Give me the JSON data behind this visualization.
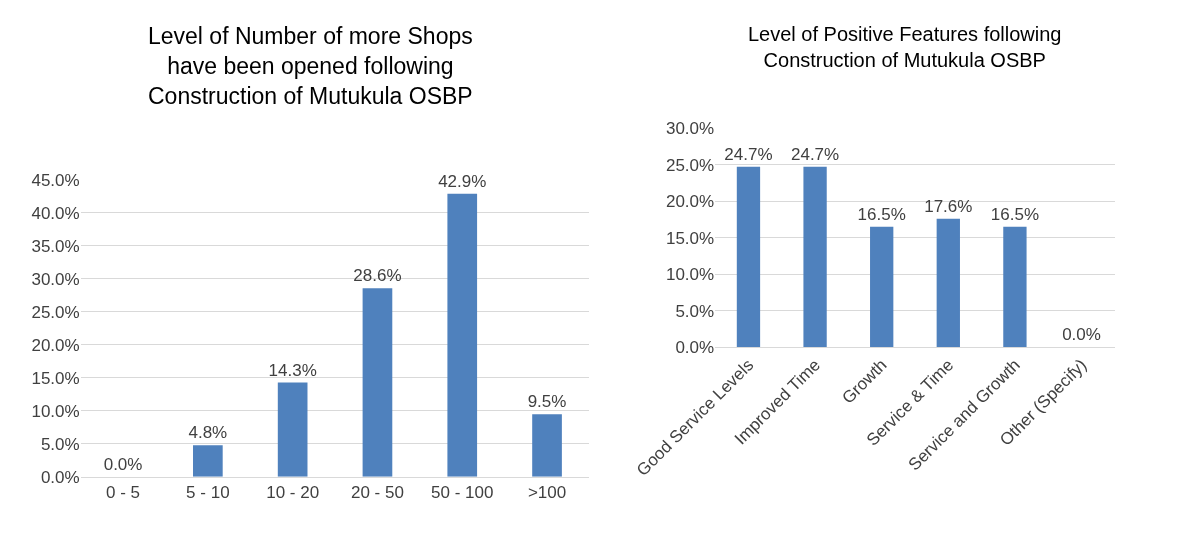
{
  "chart_data": [
    {
      "type": "bar",
      "title": "Level of Number of more Shops have been opened following Construction of Mutukula OSBP",
      "categories": [
        "0 - 5",
        "5 - 10",
        "10 - 20",
        "20 - 50",
        "50 - 100",
        ">100"
      ],
      "series": [
        {
          "color": "#4f81bd",
          "values": [
            0.0,
            4.8,
            14.3,
            28.6,
            42.9,
            9.5
          ],
          "value_labels": [
            "0.0%",
            "4.8%",
            "14.3%",
            "28.6%",
            "42.9%",
            "9.5%"
          ]
        }
      ],
      "ylim": [
        0,
        45
      ],
      "yticks": [
        {
          "value": 0,
          "label": "0.0%"
        },
        {
          "value": 5,
          "label": "5.0%"
        },
        {
          "value": 10,
          "label": "10.0%"
        },
        {
          "value": 15,
          "label": "15.0%"
        },
        {
          "value": 20,
          "label": "20.0%"
        },
        {
          "value": 25,
          "label": "25.0%"
        },
        {
          "value": 30,
          "label": "30.0%"
        },
        {
          "value": 35,
          "label": "35.0%"
        },
        {
          "value": 40,
          "label": "40.0%"
        },
        {
          "value": 45,
          "label": "45.0%"
        }
      ],
      "grid": "y"
    },
    {
      "type": "bar",
      "title": "Level of Positive Features following Construction of Mutukula OSBP",
      "categories": [
        "Good Service Levels",
        "Improved Time",
        "Growth",
        "Service & Time",
        "Service and Growth",
        "Other (Specify)"
      ],
      "series": [
        {
          "color": "#4f81bd",
          "values": [
            24.7,
            24.7,
            16.5,
            17.6,
            16.5,
            0.0
          ],
          "value_labels": [
            "24.7%",
            "24.7%",
            "16.5%",
            "17.6%",
            "16.5%",
            "0.0%"
          ]
        }
      ],
      "ylim": [
        0,
        30
      ],
      "yticks": [
        {
          "value": 0,
          "label": "0.0%"
        },
        {
          "value": 5,
          "label": "5.0%"
        },
        {
          "value": 10,
          "label": "10.0%"
        },
        {
          "value": 15,
          "label": "15.0%"
        },
        {
          "value": 20,
          "label": "20.0%"
        },
        {
          "value": 25,
          "label": "25.0%"
        },
        {
          "value": 30,
          "label": "30.0%"
        }
      ],
      "grid": "y"
    }
  ]
}
